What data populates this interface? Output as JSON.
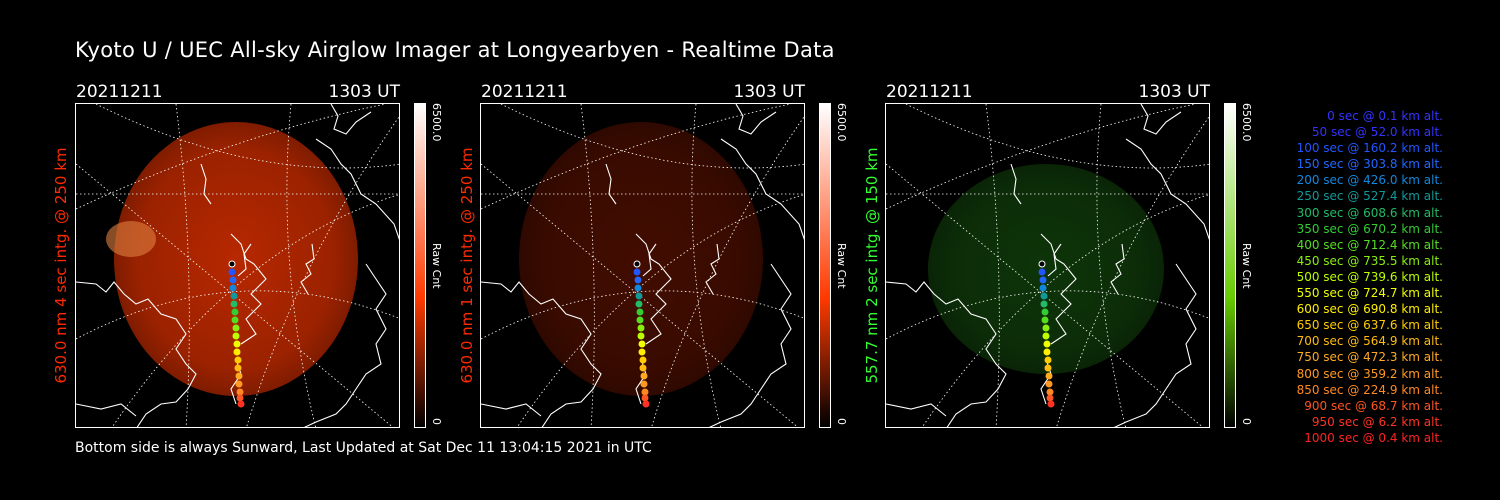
{
  "title": "Kyoto U / UEC All-sky Airglow Imager at Longyearbyen - Realtime Data",
  "footer": "Bottom side is always Sunward, Last Updated at Sat Dec 11 13:04:15 2021 in UTC",
  "panels": [
    {
      "date": "20211211",
      "time": "1303 UT",
      "ylabel": "630.0 nm 4 sec intg. @ 250 km",
      "ylabel_color": "#ff2a00",
      "cbar_max": "6500.0",
      "cbar_min": "0",
      "cbar_unit": "Raw Cnt",
      "cbar_color": "#ff3a00",
      "glow": "#c02a00",
      "glow_strength": 0.95
    },
    {
      "date": "20211211",
      "time": "1303 UT",
      "ylabel": "630.0 nm 1 sec intg. @ 250 km",
      "ylabel_color": "#ff2a00",
      "cbar_max": "6500.0",
      "cbar_min": "0",
      "cbar_unit": "Raw Cnt",
      "cbar_color": "#ff3a00",
      "glow": "#4a0e00",
      "glow_strength": 0.9
    },
    {
      "date": "20211211",
      "time": "1303 UT",
      "ylabel": "557.7 nm 2 sec intg. @ 150 km",
      "ylabel_color": "#33ff33",
      "cbar_max": "6500.0",
      "cbar_min": "0",
      "cbar_unit": "Raw Cnt",
      "cbar_color": "#66cc00",
      "glow": "#0f3a0a",
      "glow_strength": 0.9
    }
  ],
  "legend": [
    {
      "text": "0 sec @    0.1 km alt.",
      "color": "#3333ff"
    },
    {
      "text": "50 sec @   52.0 km alt.",
      "color": "#3333ff"
    },
    {
      "text": "100 sec @  160.2 km alt.",
      "color": "#2255ff"
    },
    {
      "text": "150 sec @  303.8 km alt.",
      "color": "#2266ff"
    },
    {
      "text": "200 sec @  426.0 km alt.",
      "color": "#1188dd"
    },
    {
      "text": "250 sec @  527.4 km alt.",
      "color": "#119999"
    },
    {
      "text": "300 sec @  608.6 km alt.",
      "color": "#22bb66"
    },
    {
      "text": "350 sec @  670.2 km alt.",
      "color": "#33cc33"
    },
    {
      "text": "400 sec @  712.4 km alt.",
      "color": "#55dd22"
    },
    {
      "text": "450 sec @  735.5 km alt.",
      "color": "#88ee11"
    },
    {
      "text": "500 sec @  739.6 km alt.",
      "color": "#bbff00"
    },
    {
      "text": "550 sec @  724.7 km alt.",
      "color": "#eeff00"
    },
    {
      "text": "600 sec @  690.8 km alt.",
      "color": "#ffee00"
    },
    {
      "text": "650 sec @  637.6 km alt.",
      "color": "#ffcc00"
    },
    {
      "text": "700 sec @  564.9 km alt.",
      "color": "#ffbb11"
    },
    {
      "text": "750 sec @  472.3 km alt.",
      "color": "#ffaa22"
    },
    {
      "text": "800 sec @  359.2 km alt.",
      "color": "#ff9922"
    },
    {
      "text": "850 sec @  224.9 km alt.",
      "color": "#ff8822"
    },
    {
      "text": "900 sec @   68.7 km alt.",
      "color": "#ff5522"
    },
    {
      "text": "950 sec @    6.2 km alt.",
      "color": "#ff3322"
    },
    {
      "text": "1000 sec @    0.4 km alt.",
      "color": "#ff2222"
    }
  ]
}
